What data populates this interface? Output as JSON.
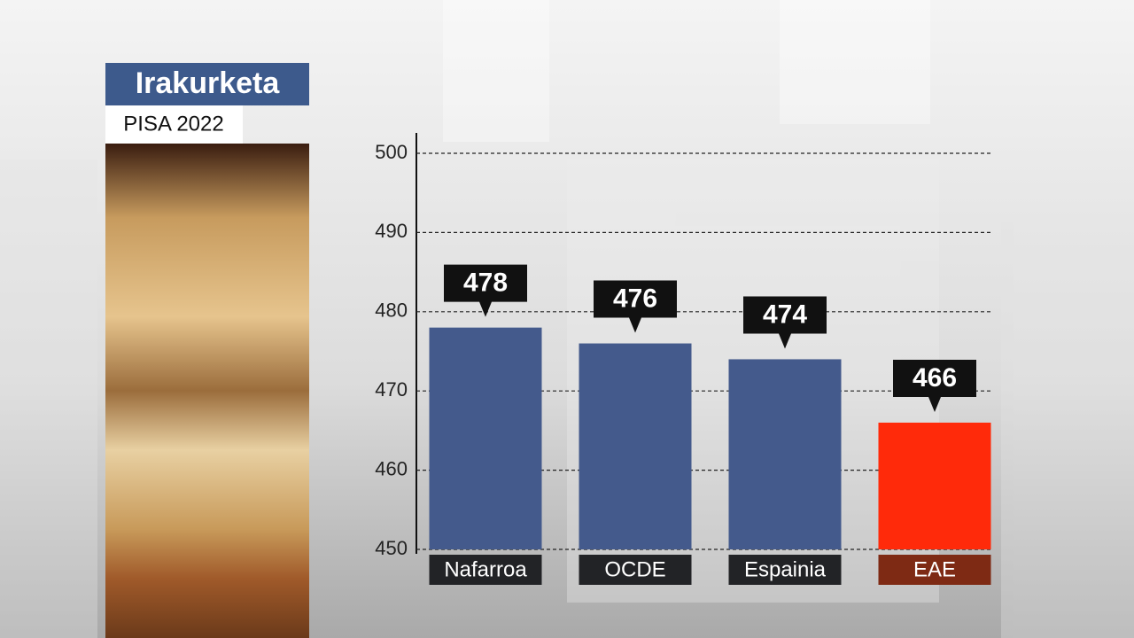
{
  "chart_data": {
    "type": "bar",
    "title": "Irakurketa",
    "subtitle": "PISA 2022",
    "categories": [
      "Nafarroa",
      "OCDE",
      "Espainia",
      "EAE"
    ],
    "values": [
      478,
      476,
      474,
      466
    ],
    "colors": [
      "#445a8c",
      "#445a8c",
      "#445a8c",
      "#ff2a0a"
    ],
    "category_box_colors": [
      "#222326",
      "#222326",
      "#222326",
      "#7e2a14"
    ],
    "ylim": [
      450,
      500
    ],
    "yticks": [
      450,
      460,
      470,
      480,
      490,
      500
    ],
    "grid": true
  }
}
